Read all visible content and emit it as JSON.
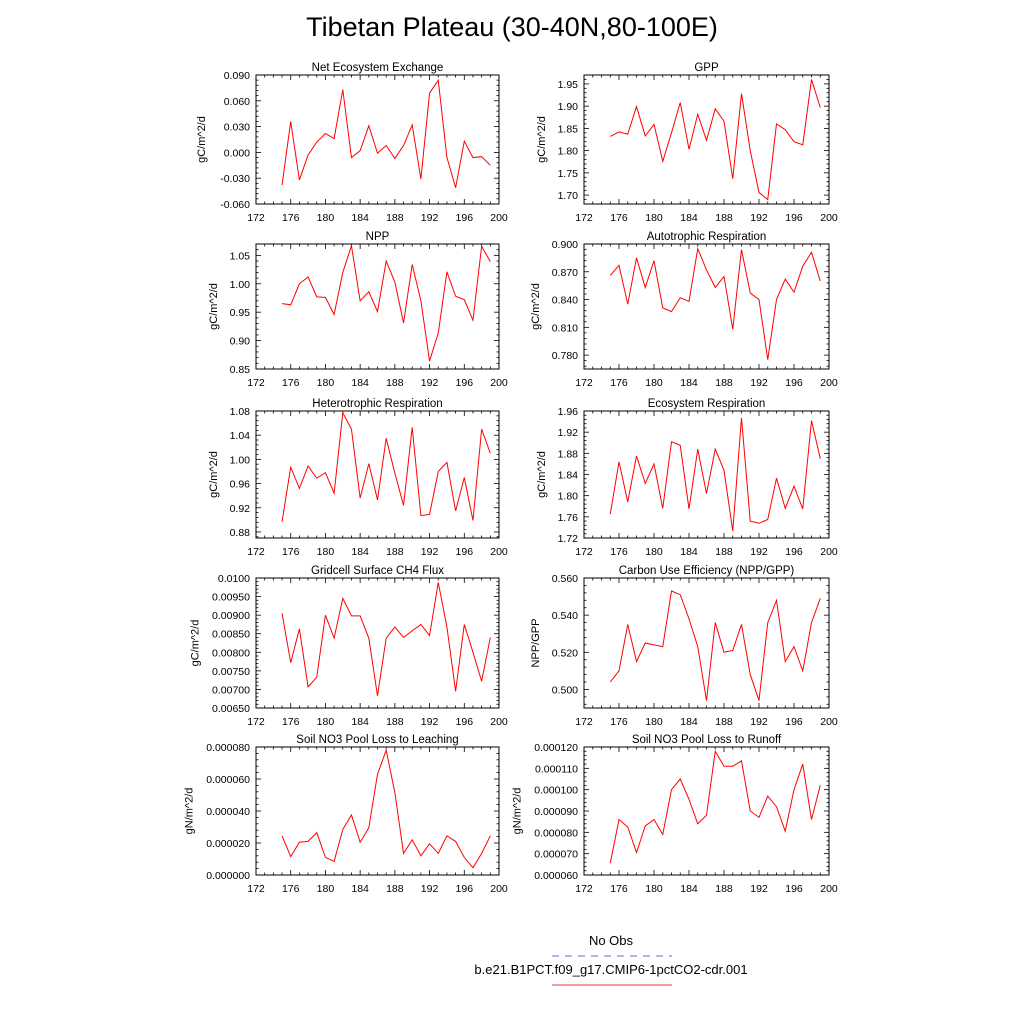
{
  "title": "Tibetan Plateau (30-40N,80-100E)",
  "legend": {
    "entries": [
      {
        "label": "No Obs",
        "color": "#6a6acd",
        "dash": "dashed"
      },
      {
        "label": "b.e21.B1PCT.f09_g17.CMIP6-1pctCO2-cdr.001",
        "color": "#e8383d",
        "dash": "solid"
      }
    ]
  },
  "chart_data": [
    {
      "type": "line",
      "title": "Net Ecosystem Exchange",
      "ylabel": "gC/m^2/d",
      "xlim": [
        172,
        200
      ],
      "ylim": [
        -0.06,
        0.09
      ],
      "xticks": [
        "172",
        "176",
        "180",
        "184",
        "188",
        "192",
        "196",
        "200"
      ],
      "yticks": [
        "-0.060",
        "-0.030",
        "0.000",
        "0.030",
        "0.060",
        "0.090"
      ],
      "series": [
        {
          "color": "#ff0000",
          "x": [
            175,
            176,
            177,
            178,
            179,
            180,
            181,
            182,
            183,
            184,
            185,
            186,
            187,
            188,
            189,
            190,
            191,
            192,
            193,
            194,
            195,
            196,
            197,
            198,
            199
          ],
          "values": [
            -0.038,
            0.036,
            -0.032,
            -0.003,
            0.012,
            0.022,
            0.016,
            0.073,
            -0.006,
            0.002,
            0.031,
            -0.001,
            0.008,
            -0.007,
            0.008,
            0.032,
            -0.031,
            0.069,
            0.084,
            -0.006,
            -0.041,
            0.013,
            -0.006,
            -0.005,
            -0.015
          ]
        }
      ]
    },
    {
      "type": "line",
      "title": "GPP",
      "ylabel": "gC/m^2/d",
      "xlim": [
        172,
        200
      ],
      "ylim": [
        1.68,
        1.97
      ],
      "xticks": [
        "172",
        "176",
        "180",
        "184",
        "188",
        "192",
        "196",
        "200"
      ],
      "yticks": [
        "1.70",
        "1.75",
        "1.80",
        "1.85",
        "1.90",
        "1.95"
      ],
      "series": [
        {
          "color": "#ff0000",
          "x": [
            175,
            176,
            177,
            178,
            179,
            180,
            181,
            182,
            183,
            184,
            185,
            186,
            187,
            188,
            189,
            190,
            191,
            192,
            193,
            194,
            195,
            196,
            197,
            198,
            199
          ],
          "values": [
            1.832,
            1.842,
            1.837,
            1.899,
            1.833,
            1.859,
            1.776,
            1.84,
            1.908,
            1.803,
            1.882,
            1.823,
            1.894,
            1.866,
            1.737,
            1.928,
            1.8,
            1.706,
            1.69,
            1.86,
            1.847,
            1.82,
            1.813,
            1.96,
            1.897
          ]
        }
      ]
    },
    {
      "type": "line",
      "title": "NPP",
      "ylabel": "gC/m^2/d",
      "xlim": [
        172,
        200
      ],
      "ylim": [
        0.85,
        1.07
      ],
      "xticks": [
        "172",
        "176",
        "180",
        "184",
        "188",
        "192",
        "196",
        "200"
      ],
      "yticks": [
        "0.85",
        "0.90",
        "0.95",
        "1.00",
        "1.05"
      ],
      "series": [
        {
          "color": "#ff0000",
          "x": [
            175,
            176,
            177,
            178,
            179,
            180,
            181,
            182,
            183,
            184,
            185,
            186,
            187,
            188,
            189,
            190,
            191,
            192,
            193,
            194,
            195,
            196,
            197,
            198,
            199
          ],
          "values": [
            0.965,
            0.963,
            1.0,
            1.012,
            0.977,
            0.976,
            0.946,
            1.02,
            1.067,
            0.97,
            0.986,
            0.951,
            1.04,
            1.003,
            0.931,
            1.034,
            0.97,
            0.864,
            0.913,
            1.021,
            0.978,
            0.972,
            0.936,
            1.066,
            1.039
          ]
        }
      ]
    },
    {
      "type": "line",
      "title": "Autotrophic Respiration",
      "ylabel": "gC/m^2/d",
      "xlim": [
        172,
        200
      ],
      "ylim": [
        0.765,
        0.9
      ],
      "xticks": [
        "172",
        "176",
        "180",
        "184",
        "188",
        "192",
        "196",
        "200"
      ],
      "yticks": [
        "0.780",
        "0.810",
        "0.840",
        "0.870",
        "0.900"
      ],
      "series": [
        {
          "color": "#ff0000",
          "x": [
            175,
            176,
            177,
            178,
            179,
            180,
            181,
            182,
            183,
            184,
            185,
            186,
            187,
            188,
            189,
            190,
            191,
            192,
            193,
            194,
            195,
            196,
            197,
            198,
            199
          ],
          "values": [
            0.866,
            0.877,
            0.835,
            0.885,
            0.853,
            0.882,
            0.831,
            0.827,
            0.842,
            0.838,
            0.895,
            0.872,
            0.853,
            0.865,
            0.808,
            0.894,
            0.847,
            0.84,
            0.775,
            0.84,
            0.862,
            0.848,
            0.876,
            0.891,
            0.86
          ]
        }
      ]
    },
    {
      "type": "line",
      "title": "Heterotrophic Respiration",
      "ylabel": "gC/m^2/d",
      "xlim": [
        172,
        200
      ],
      "ylim": [
        0.87,
        1.08
      ],
      "xticks": [
        "172",
        "176",
        "180",
        "184",
        "188",
        "192",
        "196",
        "200"
      ],
      "yticks": [
        "0.88",
        "0.92",
        "0.96",
        "1.00",
        "1.04",
        "1.08"
      ],
      "series": [
        {
          "color": "#ff0000",
          "x": [
            175,
            176,
            177,
            178,
            179,
            180,
            181,
            182,
            183,
            184,
            185,
            186,
            187,
            188,
            189,
            190,
            191,
            192,
            193,
            194,
            195,
            196,
            197,
            198,
            199
          ],
          "values": [
            0.897,
            0.987,
            0.952,
            0.989,
            0.969,
            0.978,
            0.944,
            1.077,
            1.05,
            0.936,
            0.993,
            0.933,
            1.035,
            0.977,
            0.924,
            1.053,
            0.907,
            0.909,
            0.98,
            0.995,
            0.915,
            0.97,
            0.899,
            1.05,
            1.01
          ]
        }
      ]
    },
    {
      "type": "line",
      "title": "Ecosystem Respiration",
      "ylabel": "gC/m^2/d",
      "xlim": [
        172,
        200
      ],
      "ylim": [
        1.72,
        1.96
      ],
      "xticks": [
        "172",
        "176",
        "180",
        "184",
        "188",
        "192",
        "196",
        "200"
      ],
      "yticks": [
        "1.72",
        "1.76",
        "1.80",
        "1.84",
        "1.88",
        "1.92",
        "1.96"
      ],
      "series": [
        {
          "color": "#ff0000",
          "x": [
            175,
            176,
            177,
            178,
            179,
            180,
            181,
            182,
            183,
            184,
            185,
            186,
            187,
            188,
            189,
            190,
            191,
            192,
            193,
            194,
            195,
            196,
            197,
            198,
            199
          ],
          "values": [
            1.765,
            1.864,
            1.788,
            1.875,
            1.823,
            1.86,
            1.776,
            1.902,
            1.895,
            1.775,
            1.888,
            1.804,
            1.888,
            1.848,
            1.733,
            1.947,
            1.752,
            1.748,
            1.755,
            1.833,
            1.776,
            1.818,
            1.775,
            1.942,
            1.87
          ]
        }
      ]
    },
    {
      "type": "line",
      "title": "Gridcell Surface CH4 Flux",
      "ylabel": "gC/m^2/d",
      "xlim": [
        172,
        200
      ],
      "ylim": [
        0.0065,
        0.01
      ],
      "xticks": [
        "172",
        "176",
        "180",
        "184",
        "188",
        "192",
        "196",
        "200"
      ],
      "yticks": [
        "0.00650",
        "0.00700",
        "0.00750",
        "0.00800",
        "0.00850",
        "0.00900",
        "0.00950",
        "0.0100"
      ],
      "series": [
        {
          "color": "#ff0000",
          "x": [
            175,
            176,
            177,
            178,
            179,
            180,
            181,
            182,
            183,
            184,
            185,
            186,
            187,
            188,
            189,
            190,
            191,
            192,
            193,
            194,
            195,
            196,
            197,
            198,
            199
          ],
          "values": [
            0.00905,
            0.00772,
            0.00863,
            0.00707,
            0.00733,
            0.009,
            0.00838,
            0.00945,
            0.00898,
            0.00898,
            0.00838,
            0.00683,
            0.00838,
            0.00868,
            0.0084,
            0.00858,
            0.00875,
            0.00845,
            0.00988,
            0.00868,
            0.00695,
            0.00875,
            0.008,
            0.00722,
            0.0084
          ]
        }
      ]
    },
    {
      "type": "line",
      "title": "Carbon Use Efficiency (NPP/GPP)",
      "ylabel": "NPP/GPP",
      "xlim": [
        172,
        200
      ],
      "ylim": [
        0.49,
        0.56
      ],
      "xticks": [
        "172",
        "176",
        "180",
        "184",
        "188",
        "192",
        "196",
        "200"
      ],
      "yticks": [
        "0.500",
        "0.520",
        "0.540",
        "0.560"
      ],
      "series": [
        {
          "color": "#ff0000",
          "x": [
            175,
            176,
            177,
            178,
            179,
            180,
            181,
            182,
            183,
            184,
            185,
            186,
            187,
            188,
            189,
            190,
            191,
            192,
            193,
            194,
            195,
            196,
            197,
            198,
            199
          ],
          "values": [
            0.504,
            0.51,
            0.535,
            0.515,
            0.525,
            0.524,
            0.523,
            0.553,
            0.551,
            0.538,
            0.523,
            0.494,
            0.536,
            0.52,
            0.521,
            0.535,
            0.508,
            0.494,
            0.536,
            0.548,
            0.515,
            0.523,
            0.51,
            0.536,
            0.549
          ]
        }
      ]
    },
    {
      "type": "line",
      "title": "Soil NO3 Pool Loss to Leaching",
      "ylabel": "gN/m^2/d",
      "xlim": [
        172,
        200
      ],
      "ylim": [
        0,
        8e-05
      ],
      "xticks": [
        "172",
        "176",
        "180",
        "184",
        "188",
        "192",
        "196",
        "200"
      ],
      "yticks": [
        "0.000000",
        "0.000020",
        "0.000040",
        "0.000060",
        "0.000080"
      ],
      "series": [
        {
          "color": "#ff0000",
          "x": [
            175,
            176,
            177,
            178,
            179,
            180,
            181,
            182,
            183,
            184,
            185,
            186,
            187,
            188,
            189,
            190,
            191,
            192,
            193,
            194,
            195,
            196,
            197,
            198,
            199
          ],
          "values": [
            2.45e-05,
            1.15e-05,
            2.05e-05,
            2.1e-05,
            2.65e-05,
            1.1e-05,
            8.5e-06,
            2.85e-05,
            3.75e-05,
            2.05e-05,
            2.95e-05,
            6.3e-05,
            7.8e-05,
            5.15e-05,
            1.35e-05,
            2.2e-05,
            1.2e-05,
            1.95e-05,
            1.35e-05,
            2.45e-05,
            2.1e-05,
            1.1e-05,
            4.5e-06,
            1.35e-05,
            2.45e-05
          ]
        }
      ]
    },
    {
      "type": "line",
      "title": "Soil NO3 Pool Loss to Runoff",
      "ylabel": "gN/m^2/d",
      "xlim": [
        172,
        200
      ],
      "ylim": [
        6e-05,
        0.00012
      ],
      "xticks": [
        "172",
        "176",
        "180",
        "184",
        "188",
        "192",
        "196",
        "200"
      ],
      "yticks": [
        "0.000060",
        "0.000070",
        "0.000080",
        "0.000090",
        "0.000100",
        "0.000110",
        "0.000120"
      ],
      "series": [
        {
          "color": "#ff0000",
          "x": [
            175,
            176,
            177,
            178,
            179,
            180,
            181,
            182,
            183,
            184,
            185,
            186,
            187,
            188,
            189,
            190,
            191,
            192,
            193,
            194,
            195,
            196,
            197,
            198,
            199
          ],
          "values": [
            6.55e-05,
            8.6e-05,
            8.25e-05,
            7.05e-05,
            8.3e-05,
            8.6e-05,
            7.9e-05,
            0.0001,
            0.000105,
            9.55e-05,
            8.4e-05,
            8.8e-05,
            0.000118,
            0.000111,
            0.000111,
            0.0001135,
            9e-05,
            8.7e-05,
            9.7e-05,
            9.2e-05,
            8.05e-05,
            0.0001,
            0.000112,
            8.6e-05,
            0.000102
          ]
        }
      ]
    }
  ]
}
